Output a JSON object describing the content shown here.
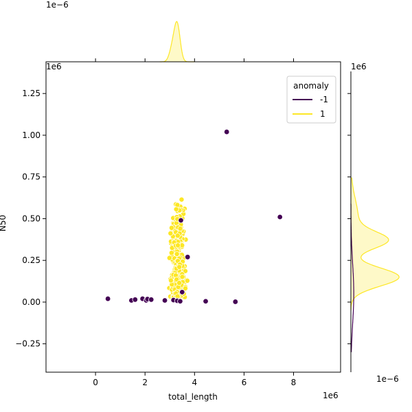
{
  "chart_data": {
    "type": "scatter",
    "subtype": "jointplot",
    "xlabel": "total_length",
    "ylabel": "N50",
    "x_scale_label": "1e6",
    "y_scale_label": "1e6",
    "top_marginal_scale_label": "1e−6",
    "right_marginal_scale_label": "1e−6",
    "right_marginal_top_label": "1e6",
    "xlim": [
      -2.0,
      9.9
    ],
    "ylim": [
      -0.42,
      1.44
    ],
    "xticks": [
      0,
      2,
      4,
      6,
      8
    ],
    "xtick_labels": [
      "0",
      "2",
      "4",
      "6",
      "8"
    ],
    "yticks": [
      -0.25,
      0.0,
      0.25,
      0.5,
      0.75,
      1.0,
      1.25
    ],
    "ytick_labels": [
      "−0.25",
      "0.00",
      "0.25",
      "0.50",
      "0.75",
      "1.00",
      "1.25"
    ],
    "grid": false,
    "legend": {
      "title": "anomaly",
      "placement": "top-right",
      "entries": [
        {
          "label": "-1",
          "color": "#440154"
        },
        {
          "label": "1",
          "color": "#fde725"
        }
      ]
    },
    "series": [
      {
        "name": "-1",
        "color": "#440154",
        "points": [
          [
            0.5,
            0.02
          ],
          [
            1.45,
            0.01
          ],
          [
            1.6,
            0.015
          ],
          [
            1.9,
            0.02
          ],
          [
            2.05,
            0.01
          ],
          [
            2.1,
            0.018
          ],
          [
            2.25,
            0.015
          ],
          [
            2.8,
            0.01
          ],
          [
            3.15,
            0.012
          ],
          [
            3.3,
            0.008
          ],
          [
            3.42,
            0.005
          ],
          [
            3.45,
            0.49
          ],
          [
            3.5,
            0.06
          ],
          [
            3.72,
            0.27
          ],
          [
            4.45,
            0.005
          ],
          [
            5.3,
            1.02
          ],
          [
            5.65,
            0.002
          ],
          [
            7.45,
            0.51
          ]
        ]
      },
      {
        "name": "1",
        "color": "#fde725",
        "cluster": {
          "x_min": 2.95,
          "x_max": 3.75,
          "y_min": 0.03,
          "y_max": 0.64,
          "y_peaks": [
            0.12,
            0.37
          ]
        }
      }
    ],
    "top_marginal": {
      "series": "1",
      "peak_x": 3.3,
      "spread": 0.12
    },
    "right_marginal": {
      "series": "1",
      "peaks_y": [
        0.15,
        0.37
      ]
    }
  }
}
